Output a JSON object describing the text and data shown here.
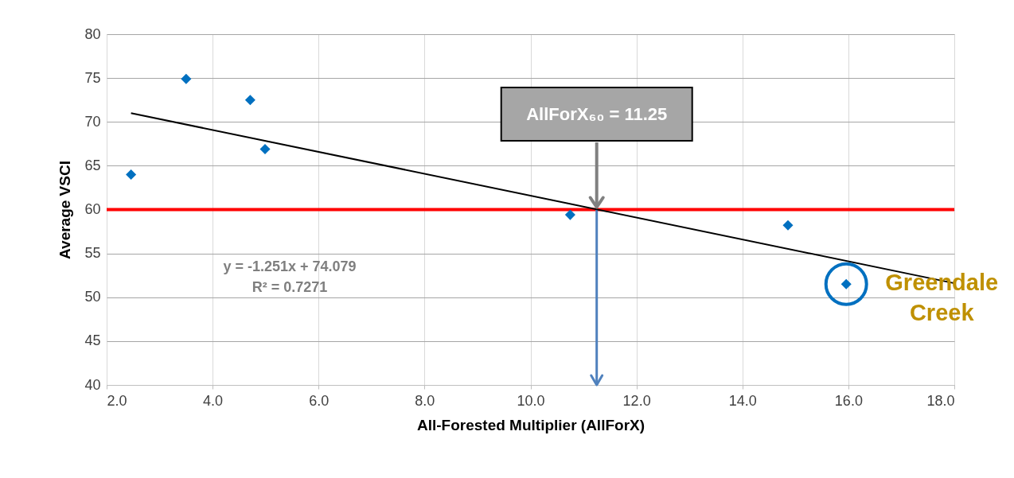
{
  "chart_data": {
    "type": "scatter",
    "xlabel": "All-Forested Multiplier (AllForX)",
    "ylabel": "Average VSCI",
    "xlim": [
      2,
      18
    ],
    "ylim": [
      40,
      80
    ],
    "xticks": [
      {
        "value": 2,
        "label": "2.0"
      },
      {
        "value": 4,
        "label": "4.0"
      },
      {
        "value": 6,
        "label": "6.0"
      },
      {
        "value": 8,
        "label": "8.0"
      },
      {
        "value": 10,
        "label": "10.0"
      },
      {
        "value": 12,
        "label": "12.0"
      },
      {
        "value": 14,
        "label": "14.0"
      },
      {
        "value": 16,
        "label": "16.0"
      },
      {
        "value": 18,
        "label": "18.0"
      }
    ],
    "yticks": [
      40,
      45,
      50,
      55,
      60,
      65,
      70,
      75,
      80
    ],
    "grid": true,
    "marker": "diamond",
    "series": [
      {
        "color": "#0070c0",
        "x": [
          2.46,
          3.5,
          4.71,
          4.99,
          10.75,
          14.86,
          15.96
        ],
        "values": [
          64.0,
          74.9,
          72.5,
          66.9,
          59.4,
          58.2,
          51.5
        ]
      },
      {
        "type": "line",
        "color": "#000000",
        "x": [
          2.46,
          18
        ],
        "values": [
          71.0,
          51.6
        ],
        "marker": "none",
        "line_style": "solid"
      }
    ],
    "ref_lines": [
      {
        "axis": "y",
        "value": 60,
        "color": "#ff0000"
      },
      {
        "axis": "x",
        "value": 11.25,
        "color": "#4f81bd"
      }
    ],
    "annotations": [
      {
        "text": "AllForX₆₀ = 11.25",
        "x": 11.25,
        "y": 60
      },
      "y = -1.251x + 74.079",
      "R² = 0.7271",
      {
        "text": "Greendale\nCreek",
        "x": 15.96,
        "y": 51.5
      }
    ]
  }
}
